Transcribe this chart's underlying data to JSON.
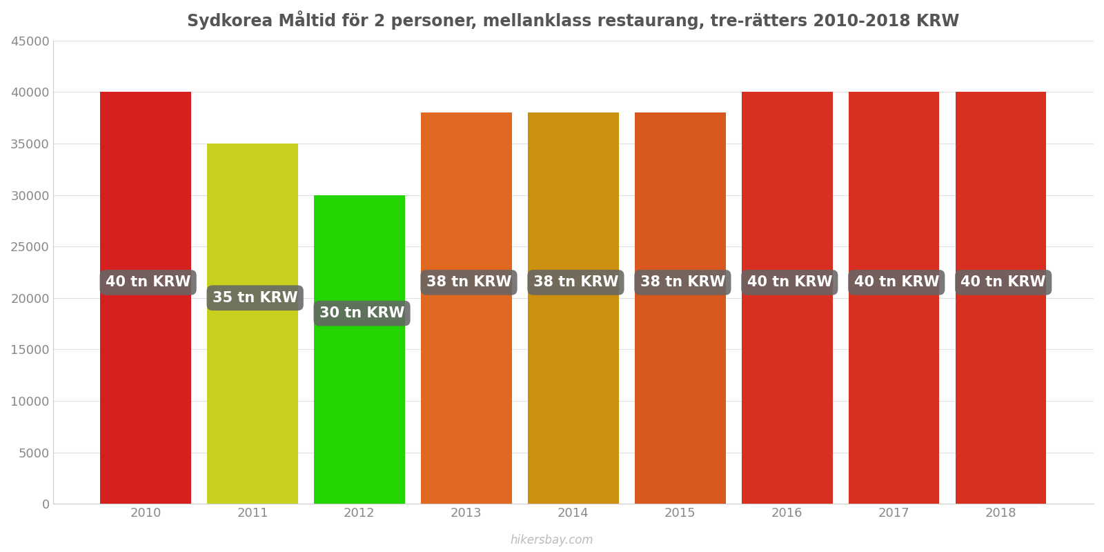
{
  "years": [
    2010,
    2011,
    2012,
    2013,
    2014,
    2015,
    2016,
    2017,
    2018
  ],
  "values": [
    40000,
    35000,
    30000,
    38000,
    38000,
    38000,
    40000,
    40000,
    40000
  ],
  "labels": [
    "40 tn KRW",
    "35 tn KRW",
    "30 tn KRW",
    "38 tn KRW",
    "38 tn KRW",
    "38 tn KRW",
    "40 tn KRW",
    "40 tn KRW",
    "40 tn KRW"
  ],
  "bar_colors": [
    "#d62020",
    "#c8d020",
    "#22d400",
    "#e06820",
    "#cc9010",
    "#d85820",
    "#d83020",
    "#d83020",
    "#d83020"
  ],
  "title": "Sydkorea Måltid för 2 personer, mellanklass restaurang, tre-rätters 2010-2018 KRW",
  "ylim": [
    0,
    45000
  ],
  "yticks": [
    0,
    5000,
    10000,
    15000,
    20000,
    25000,
    30000,
    35000,
    40000,
    45000
  ],
  "background_color": "#ffffff",
  "label_bg_color": "#666666",
  "label_text_color": "#ffffff",
  "watermark": "hikersbay.com",
  "title_fontsize": 17,
  "tick_fontsize": 13,
  "label_fontsize": 15,
  "label_y_positions": [
    21500,
    20000,
    18500,
    21500,
    21500,
    21500,
    21500,
    21500,
    21500
  ],
  "bar_width": 0.85
}
